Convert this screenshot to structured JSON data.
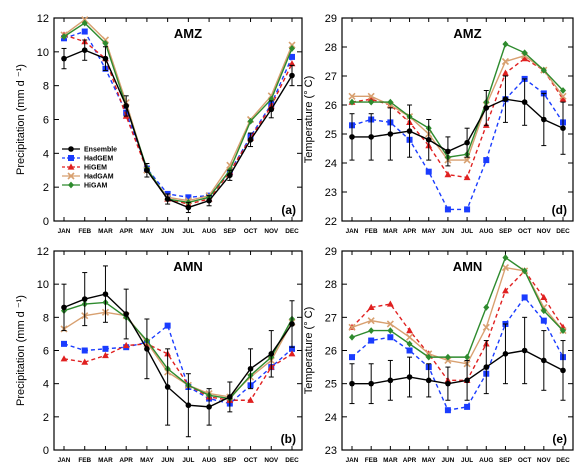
{
  "months": [
    "JAN",
    "FEB",
    "MAR",
    "APR",
    "MAY",
    "JUN",
    "JUL",
    "AUG",
    "SEP",
    "OCT",
    "NOV",
    "DEC"
  ],
  "series_styles": [
    {
      "name": "Ensemble",
      "color": "#000000",
      "marker": "circle",
      "dash": ""
    },
    {
      "name": "HadGEM",
      "color": "#1a3cff",
      "marker": "square",
      "dash": "4,3"
    },
    {
      "name": "HiGEM",
      "color": "#e02020",
      "marker": "triangle",
      "dash": "4,3"
    },
    {
      "name": "HadGAM",
      "color": "#d8a070",
      "marker": "x",
      "dash": ""
    },
    {
      "name": "HiGAM",
      "color": "#2e8b2e",
      "marker": "diamond",
      "dash": ""
    }
  ],
  "chart_data": [
    {
      "type": "line",
      "title": "AMZ",
      "panel_label": "(a)",
      "ylabel": "Precipitation  (mm d ⁻¹)",
      "ylim": [
        0,
        12
      ],
      "yticks": [
        0,
        2,
        4,
        6,
        8,
        10,
        12
      ],
      "categories": [
        "JAN",
        "FEB",
        "MAR",
        "APR",
        "MAY",
        "JUN",
        "JUL",
        "AUG",
        "SEP",
        "OCT",
        "NOV",
        "DEC"
      ],
      "legend": "lower-left",
      "series": [
        {
          "name": "Ensemble",
          "values": [
            9.6,
            10.1,
            9.6,
            6.8,
            3.0,
            1.3,
            0.8,
            1.2,
            2.7,
            4.8,
            6.6,
            8.6
          ],
          "err": [
            0.6,
            0.6,
            0.7,
            0.6,
            0.4,
            0.3,
            0.3,
            0.3,
            0.3,
            0.4,
            0.5,
            0.6
          ]
        },
        {
          "name": "HadGEM",
          "values": [
            10.8,
            11.2,
            9.0,
            6.4,
            3.1,
            1.6,
            1.4,
            1.5,
            2.9,
            5.0,
            6.9,
            9.7
          ]
        },
        {
          "name": "HiGEM",
          "values": [
            11.0,
            10.6,
            9.6,
            6.2,
            3.0,
            1.3,
            1.0,
            1.3,
            2.9,
            4.9,
            6.8,
            9.3
          ]
        },
        {
          "name": "HadGAM",
          "values": [
            11.0,
            11.9,
            10.7,
            7.0,
            3.0,
            1.4,
            1.2,
            1.5,
            3.3,
            6.0,
            7.4,
            10.4
          ]
        },
        {
          "name": "HiGAM",
          "values": [
            10.9,
            11.7,
            10.5,
            6.8,
            3.1,
            1.3,
            1.1,
            1.4,
            3.0,
            5.9,
            7.2,
            10.2
          ]
        }
      ]
    },
    {
      "type": "line",
      "title": "AMZ",
      "panel_label": "(d)",
      "ylabel": "Temperature  (° C)",
      "ylim": [
        22,
        29
      ],
      "yticks": [
        22,
        23,
        24,
        25,
        26,
        27,
        28,
        29
      ],
      "categories": [
        "JAN",
        "FEB",
        "MAR",
        "APR",
        "MAY",
        "JUN",
        "JUL",
        "AUG",
        "SEP",
        "OCT",
        "NOV",
        "DEC"
      ],
      "series": [
        {
          "name": "Ensemble",
          "values": [
            24.9,
            24.9,
            25.0,
            25.1,
            24.8,
            24.4,
            24.7,
            25.9,
            26.2,
            26.1,
            25.5,
            25.2
          ],
          "err": [
            0.8,
            0.8,
            0.9,
            0.9,
            0.7,
            0.5,
            0.5,
            0.6,
            0.8,
            0.8,
            0.9,
            0.9
          ]
        },
        {
          "name": "HadGEM",
          "values": [
            25.3,
            25.5,
            25.4,
            24.8,
            23.7,
            22.4,
            22.4,
            24.1,
            26.2,
            26.9,
            26.4,
            25.4
          ]
        },
        {
          "name": "HiGEM",
          "values": [
            26.1,
            26.2,
            26.0,
            25.4,
            24.6,
            23.6,
            23.5,
            25.3,
            27.1,
            27.6,
            27.2,
            26.2
          ]
        },
        {
          "name": "HadGAM",
          "values": [
            26.3,
            26.3,
            26.0,
            25.6,
            25.0,
            24.1,
            24.1,
            26.0,
            27.5,
            27.7,
            27.2,
            26.3
          ]
        },
        {
          "name": "HiGAM",
          "values": [
            26.1,
            26.1,
            26.1,
            25.6,
            25.2,
            24.2,
            24.3,
            26.1,
            28.1,
            27.8,
            27.2,
            26.5
          ]
        }
      ]
    },
    {
      "type": "line",
      "title": "AMN",
      "panel_label": "(b)",
      "ylabel": "Precipitation  (mm d ⁻¹)",
      "ylim": [
        0,
        12
      ],
      "yticks": [
        0,
        2,
        4,
        6,
        8,
        10,
        12
      ],
      "categories": [
        "JAN",
        "FEB",
        "MAR",
        "APR",
        "MAY",
        "JUN",
        "JUL",
        "AUG",
        "SEP",
        "OCT",
        "NOV",
        "DEC"
      ],
      "series": [
        {
          "name": "Ensemble",
          "values": [
            8.6,
            9.1,
            9.4,
            8.2,
            6.1,
            3.8,
            2.7,
            2.6,
            3.2,
            4.9,
            5.8,
            7.6
          ],
          "err": [
            1.4,
            1.6,
            1.7,
            1.5,
            1.8,
            2.3,
            1.9,
            1.1,
            0.9,
            1.2,
            1.4,
            1.4
          ]
        },
        {
          "name": "HadGEM",
          "values": [
            6.4,
            6.0,
            6.1,
            6.2,
            6.5,
            7.5,
            3.8,
            3.1,
            2.8,
            3.9,
            5.0,
            6.1
          ]
        },
        {
          "name": "HiGEM",
          "values": [
            5.5,
            5.3,
            5.7,
            6.3,
            6.4,
            5.8,
            3.9,
            3.2,
            3.0,
            3.0,
            5.0,
            5.8
          ]
        },
        {
          "name": "HadGAM",
          "values": [
            7.3,
            8.1,
            8.3,
            8.1,
            6.5,
            4.7,
            3.9,
            3.4,
            3.2,
            4.4,
            5.4,
            7.7
          ]
        },
        {
          "name": "HiGAM",
          "values": [
            8.4,
            8.8,
            8.9,
            8.0,
            6.6,
            4.9,
            3.9,
            3.3,
            3.1,
            4.5,
            5.6,
            7.9
          ]
        }
      ]
    },
    {
      "type": "line",
      "title": "AMN",
      "panel_label": "(e)",
      "ylabel": "Temperature  (° C)",
      "ylim": [
        23,
        29
      ],
      "yticks": [
        23,
        24,
        25,
        26,
        27,
        28,
        29
      ],
      "categories": [
        "JAN",
        "FEB",
        "MAR",
        "APR",
        "MAY",
        "JUN",
        "JUL",
        "AUG",
        "SEP",
        "OCT",
        "NOV",
        "DEC"
      ],
      "series": [
        {
          "name": "Ensemble",
          "values": [
            25.0,
            25.0,
            25.1,
            25.2,
            25.1,
            25.0,
            25.1,
            25.5,
            25.9,
            26.0,
            25.7,
            25.4
          ],
          "err": [
            0.6,
            0.6,
            0.6,
            0.6,
            0.5,
            0.5,
            0.6,
            0.8,
            0.9,
            1.0,
            0.9,
            0.9
          ]
        },
        {
          "name": "HadGEM",
          "values": [
            25.8,
            26.3,
            26.4,
            26.0,
            25.5,
            24.2,
            24.3,
            25.3,
            26.8,
            27.6,
            26.9,
            25.8
          ]
        },
        {
          "name": "HiGEM",
          "values": [
            26.7,
            27.3,
            27.4,
            26.6,
            25.9,
            25.1,
            25.1,
            26.2,
            27.8,
            28.4,
            27.6,
            26.7
          ]
        },
        {
          "name": "HadGAM",
          "values": [
            26.7,
            26.9,
            26.8,
            26.4,
            25.9,
            25.7,
            25.6,
            26.7,
            28.5,
            28.4,
            27.3,
            26.6
          ]
        },
        {
          "name": "HiGAM",
          "values": [
            26.4,
            26.6,
            26.6,
            26.2,
            25.8,
            25.8,
            25.8,
            27.3,
            28.8,
            28.4,
            27.2,
            26.6
          ]
        }
      ]
    }
  ]
}
